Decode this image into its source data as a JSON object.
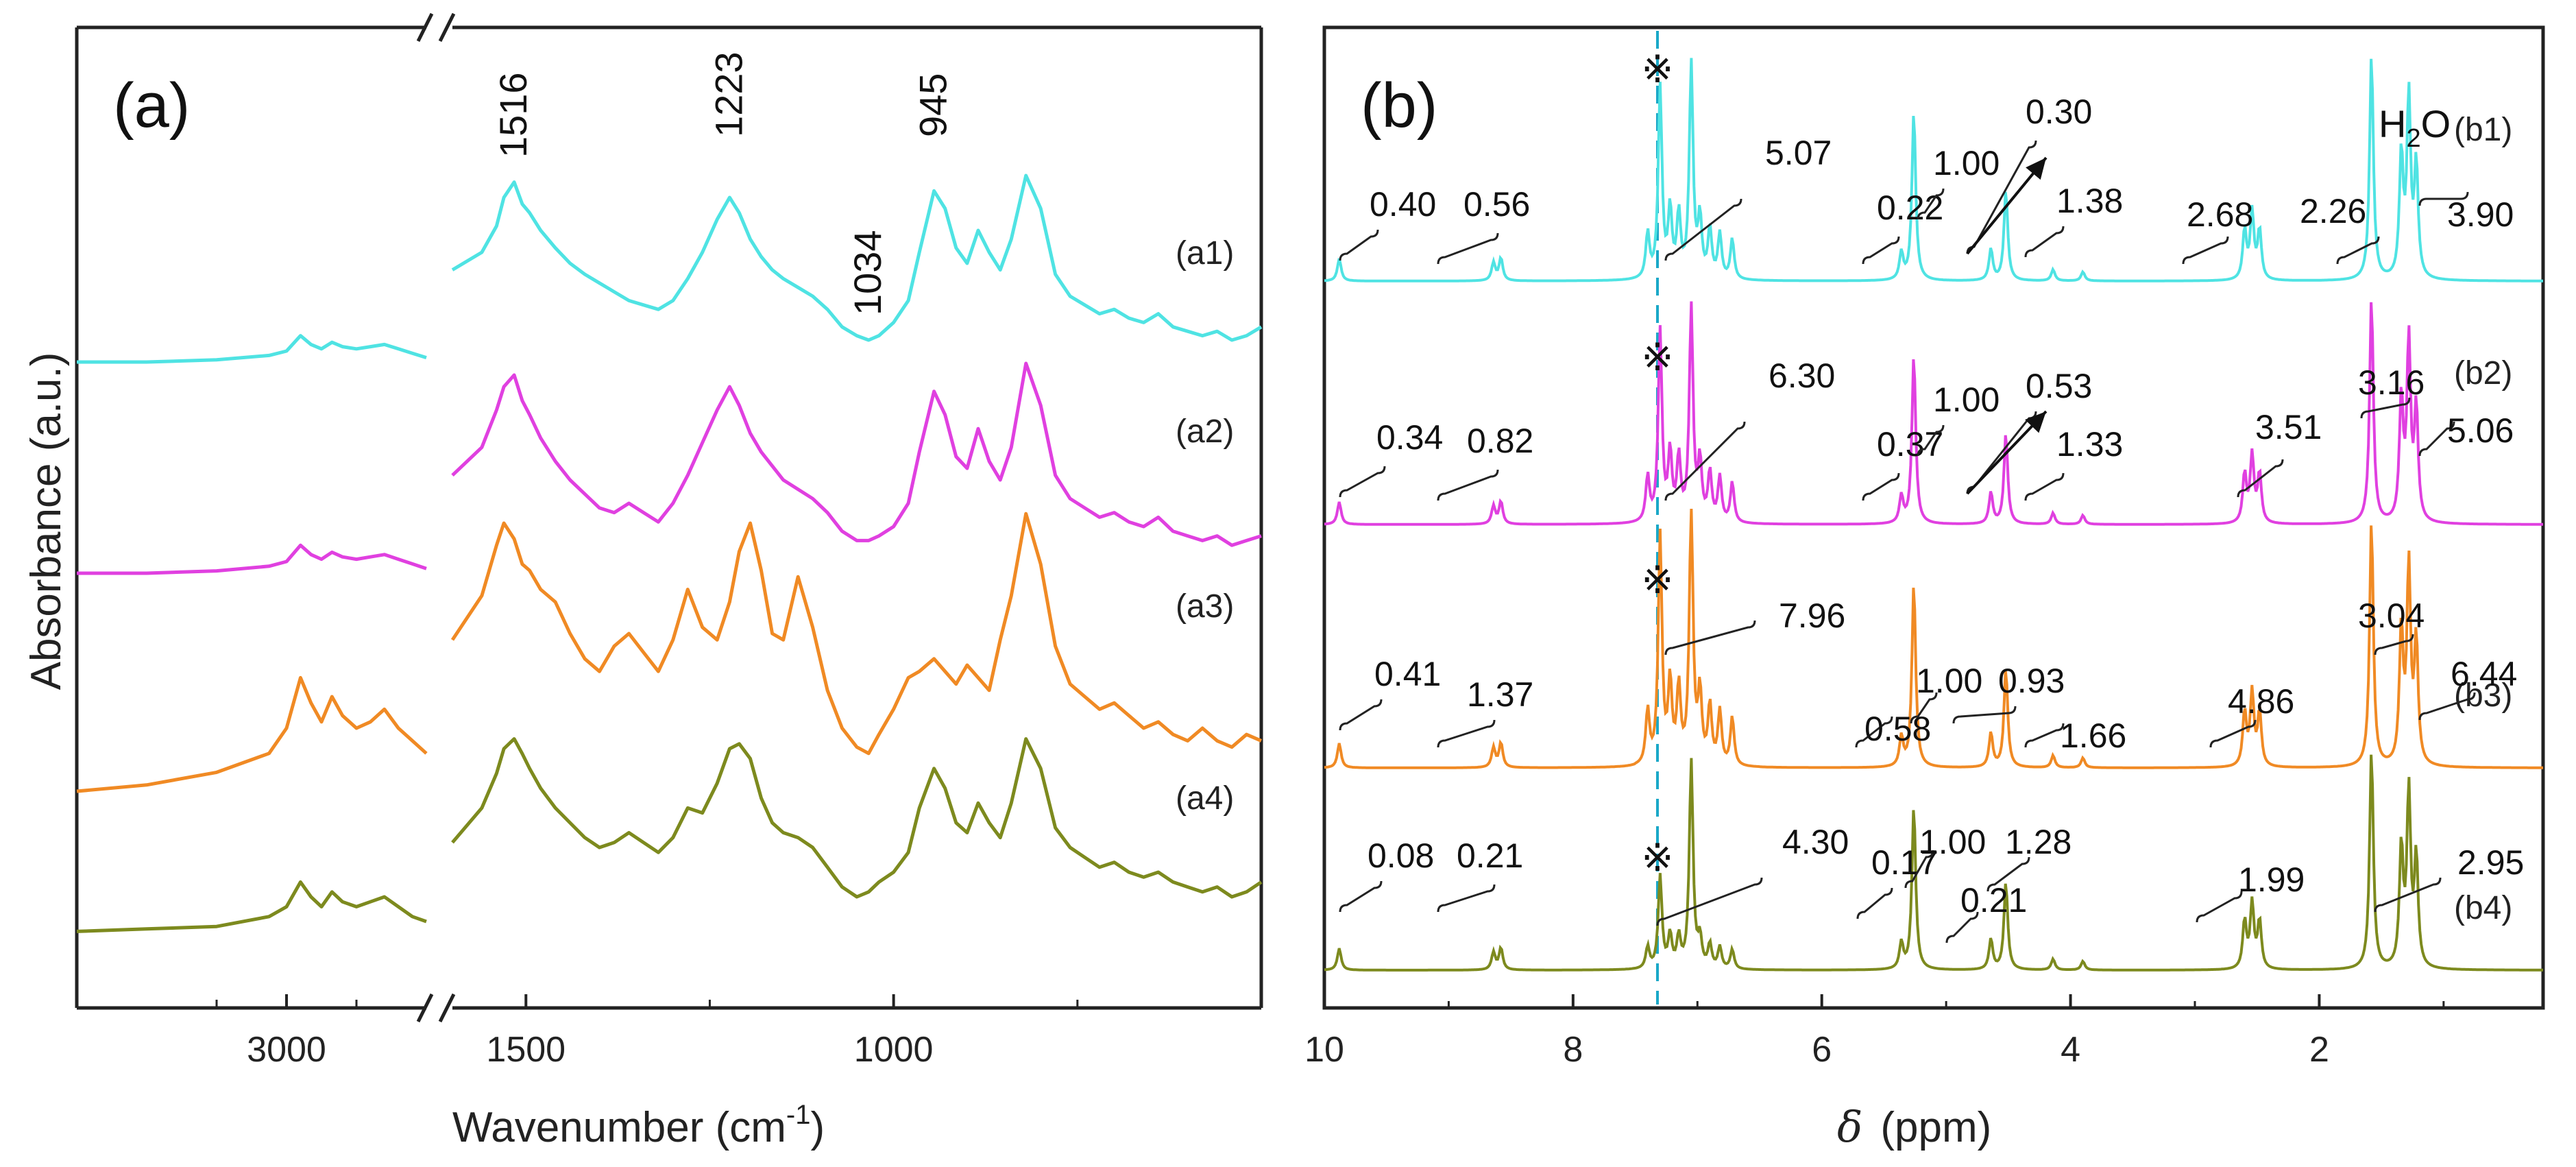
{
  "chart_data": [
    {
      "type": "line",
      "panel": "(a)",
      "title": "",
      "xlabel": "Wavenumber (cm",
      "xlabel_sup": "-1",
      "xlabel_end": ")",
      "ylabel": "Absorbance (a.u.)",
      "x_break": {
        "from": 2600,
        "to": 1600
      },
      "xlim": [
        3600,
        500
      ],
      "xticks": [
        3000,
        1500,
        1000
      ],
      "grid": false,
      "peak_labels": [
        "1516",
        "1223",
        "1034",
        "945"
      ],
      "peak_positions": [
        1516,
        1223,
        1034,
        945
      ],
      "series": [
        {
          "name": "(a1)",
          "color": "#4FE3E3",
          "offset": 0.0,
          "x": [
            3600,
            3400,
            3200,
            3050,
            3000,
            2960,
            2930,
            2900,
            2870,
            2840,
            2800,
            2760,
            2720,
            2680,
            2640,
            2600,
            1600,
            1560,
            1540,
            1530,
            1516,
            1505,
            1495,
            1480,
            1460,
            1440,
            1420,
            1400,
            1380,
            1360,
            1340,
            1320,
            1300,
            1280,
            1260,
            1240,
            1223,
            1210,
            1195,
            1180,
            1165,
            1150,
            1130,
            1110,
            1090,
            1070,
            1050,
            1034,
            1020,
            1000,
            980,
            965,
            945,
            930,
            915,
            900,
            885,
            870,
            855,
            840,
            820,
            800,
            780,
            760,
            740,
            720,
            700,
            680,
            660,
            640,
            620,
            600,
            580,
            560,
            540,
            520,
            500
          ],
          "y": [
            0.1,
            0.1,
            0.11,
            0.13,
            0.15,
            0.22,
            0.18,
            0.16,
            0.19,
            0.17,
            0.16,
            0.17,
            0.18,
            0.16,
            0.14,
            0.12,
            0.52,
            0.6,
            0.72,
            0.85,
            0.92,
            0.82,
            0.78,
            0.7,
            0.62,
            0.55,
            0.5,
            0.46,
            0.42,
            0.38,
            0.36,
            0.34,
            0.38,
            0.48,
            0.6,
            0.75,
            0.85,
            0.78,
            0.66,
            0.58,
            0.52,
            0.48,
            0.44,
            0.4,
            0.34,
            0.26,
            0.22,
            0.2,
            0.22,
            0.28,
            0.38,
            0.6,
            0.88,
            0.8,
            0.62,
            0.55,
            0.7,
            0.6,
            0.52,
            0.66,
            0.95,
            0.8,
            0.5,
            0.4,
            0.36,
            0.32,
            0.34,
            0.3,
            0.28,
            0.32,
            0.26,
            0.24,
            0.22,
            0.24,
            0.2,
            0.22,
            0.26
          ]
        },
        {
          "name": "(a2)",
          "color": "#E040E0",
          "offset": 0.0,
          "x": [
            3600,
            3400,
            3200,
            3050,
            3000,
            2960,
            2930,
            2900,
            2870,
            2840,
            2800,
            2760,
            2720,
            2680,
            2640,
            2600,
            1600,
            1560,
            1540,
            1530,
            1516,
            1505,
            1495,
            1480,
            1460,
            1440,
            1420,
            1400,
            1380,
            1360,
            1340,
            1320,
            1300,
            1280,
            1260,
            1240,
            1223,
            1210,
            1195,
            1180,
            1165,
            1150,
            1130,
            1110,
            1090,
            1070,
            1050,
            1034,
            1020,
            1000,
            980,
            965,
            945,
            930,
            915,
            900,
            885,
            870,
            855,
            840,
            820,
            800,
            780,
            760,
            740,
            720,
            700,
            680,
            660,
            640,
            620,
            600,
            580,
            560,
            540,
            520,
            500
          ],
          "y": [
            0.1,
            0.1,
            0.11,
            0.13,
            0.15,
            0.22,
            0.18,
            0.16,
            0.19,
            0.17,
            0.16,
            0.17,
            0.18,
            0.16,
            0.14,
            0.12,
            0.52,
            0.64,
            0.8,
            0.9,
            0.95,
            0.84,
            0.78,
            0.68,
            0.58,
            0.5,
            0.44,
            0.38,
            0.36,
            0.4,
            0.36,
            0.32,
            0.4,
            0.52,
            0.66,
            0.8,
            0.9,
            0.82,
            0.7,
            0.62,
            0.56,
            0.5,
            0.46,
            0.42,
            0.36,
            0.28,
            0.24,
            0.24,
            0.26,
            0.3,
            0.4,
            0.62,
            0.88,
            0.78,
            0.6,
            0.55,
            0.72,
            0.58,
            0.5,
            0.64,
            1.0,
            0.82,
            0.52,
            0.42,
            0.38,
            0.34,
            0.36,
            0.32,
            0.3,
            0.34,
            0.28,
            0.26,
            0.24,
            0.26,
            0.22,
            0.24,
            0.26
          ]
        },
        {
          "name": "(a3)",
          "color": "#F08A24",
          "offset": 0.0,
          "x": [
            3600,
            3400,
            3200,
            3050,
            3000,
            2960,
            2930,
            2900,
            2870,
            2840,
            2800,
            2760,
            2720,
            2680,
            2640,
            2600,
            1600,
            1560,
            1540,
            1530,
            1516,
            1505,
            1495,
            1480,
            1460,
            1440,
            1420,
            1400,
            1380,
            1360,
            1340,
            1320,
            1300,
            1280,
            1260,
            1240,
            1223,
            1210,
            1195,
            1180,
            1165,
            1150,
            1130,
            1110,
            1090,
            1070,
            1050,
            1034,
            1020,
            1000,
            980,
            965,
            945,
            930,
            915,
            900,
            885,
            870,
            855,
            840,
            820,
            800,
            780,
            760,
            740,
            720,
            700,
            680,
            660,
            640,
            620,
            600,
            580,
            560,
            540,
            520,
            500
          ],
          "y": [
            0.1,
            0.12,
            0.16,
            0.22,
            0.3,
            0.46,
            0.38,
            0.32,
            0.4,
            0.34,
            0.3,
            0.32,
            0.36,
            0.3,
            0.26,
            0.22,
            0.58,
            0.72,
            0.88,
            0.95,
            0.9,
            0.82,
            0.8,
            0.74,
            0.7,
            0.6,
            0.52,
            0.48,
            0.56,
            0.6,
            0.54,
            0.48,
            0.58,
            0.74,
            0.62,
            0.58,
            0.7,
            0.86,
            0.95,
            0.8,
            0.6,
            0.58,
            0.78,
            0.62,
            0.42,
            0.3,
            0.24,
            0.22,
            0.28,
            0.36,
            0.46,
            0.48,
            0.52,
            0.48,
            0.44,
            0.5,
            0.46,
            0.42,
            0.58,
            0.72,
            0.98,
            0.82,
            0.56,
            0.44,
            0.4,
            0.36,
            0.38,
            0.34,
            0.3,
            0.32,
            0.28,
            0.26,
            0.3,
            0.26,
            0.24,
            0.28,
            0.26
          ]
        },
        {
          "name": "(a4)",
          "color": "#7D8A1E",
          "offset": 0.0,
          "x": [
            3600,
            3400,
            3200,
            3050,
            3000,
            2960,
            2930,
            2900,
            2870,
            2840,
            2800,
            2760,
            2720,
            2680,
            2640,
            2600,
            1600,
            1560,
            1540,
            1530,
            1516,
            1505,
            1495,
            1480,
            1460,
            1440,
            1420,
            1400,
            1380,
            1360,
            1340,
            1320,
            1300,
            1280,
            1260,
            1240,
            1223,
            1210,
            1195,
            1180,
            1165,
            1150,
            1130,
            1110,
            1090,
            1070,
            1050,
            1034,
            1020,
            1000,
            980,
            965,
            945,
            930,
            915,
            900,
            885,
            870,
            855,
            840,
            820,
            800,
            780,
            760,
            740,
            720,
            700,
            680,
            660,
            640,
            620,
            600,
            580,
            560,
            540,
            520,
            500
          ],
          "y": [
            0.06,
            0.07,
            0.08,
            0.12,
            0.16,
            0.26,
            0.2,
            0.16,
            0.22,
            0.18,
            0.16,
            0.18,
            0.2,
            0.16,
            0.12,
            0.1,
            0.42,
            0.56,
            0.7,
            0.8,
            0.84,
            0.78,
            0.72,
            0.64,
            0.56,
            0.5,
            0.44,
            0.4,
            0.42,
            0.46,
            0.42,
            0.38,
            0.44,
            0.56,
            0.54,
            0.66,
            0.8,
            0.82,
            0.76,
            0.6,
            0.5,
            0.46,
            0.44,
            0.4,
            0.32,
            0.24,
            0.2,
            0.22,
            0.26,
            0.3,
            0.38,
            0.56,
            0.72,
            0.64,
            0.5,
            0.46,
            0.58,
            0.5,
            0.44,
            0.58,
            0.84,
            0.72,
            0.48,
            0.4,
            0.36,
            0.32,
            0.34,
            0.3,
            0.28,
            0.3,
            0.26,
            0.24,
            0.22,
            0.24,
            0.2,
            0.22,
            0.26
          ]
        }
      ]
    },
    {
      "type": "line",
      "panel": "(b)",
      "title": "",
      "xlabel_symbol": "δ",
      "xlabel": "(ppm)",
      "ylabel": "",
      "xlim": [
        10,
        0.2
      ],
      "xticks": [
        10,
        8,
        6,
        4,
        2
      ],
      "grid": false,
      "solvent_marker": "※",
      "water_label": "H",
      "water_sub": "2",
      "water_end": "O",
      "series": [
        {
          "name": "(b1)",
          "color": "#4FE3E3",
          "scale": 1.0,
          "integrals": [
            "0.40",
            "0.56",
            "5.07",
            "0.22",
            "1.00",
            "0.30",
            "1.38",
            "2.68",
            "2.26",
            "3.90"
          ]
        },
        {
          "name": "(b2)",
          "color": "#E040E0",
          "scale": 1.0,
          "integrals": [
            "0.34",
            "0.82",
            "6.30",
            "0.37",
            "1.00",
            "0.53",
            "1.33",
            "3.51",
            "3.16",
            "5.06"
          ]
        },
        {
          "name": "(b3)",
          "color": "#F08A24",
          "scale": 1.0,
          "integrals": [
            "0.41",
            "1.37",
            "7.96",
            "0.58",
            "1.00",
            "0.93",
            "1.66",
            "4.86",
            "3.04",
            "6.44"
          ]
        },
        {
          "name": "(b4)",
          "color": "#7D8A1E",
          "scale": 1.0,
          "integrals": [
            "0.08",
            "0.21",
            "4.30",
            "0.17",
            "1.00",
            "0.21",
            "1.28",
            "1.99",
            "2.95"
          ]
        }
      ],
      "peaks": [
        {
          "ppm": 9.88,
          "h": 0.1
        },
        {
          "ppm": 8.64,
          "h": 0.08
        },
        {
          "ppm": 8.58,
          "h": 0.1
        },
        {
          "ppm": 7.4,
          "h": 0.2
        },
        {
          "ppm": 7.3,
          "h": 0.85
        },
        {
          "ppm": 7.22,
          "h": 0.3
        },
        {
          "ppm": 7.15,
          "h": 0.28
        },
        {
          "ppm": 7.05,
          "h": 0.95
        },
        {
          "ppm": 6.98,
          "h": 0.26
        },
        {
          "ppm": 6.9,
          "h": 0.22
        },
        {
          "ppm": 6.82,
          "h": 0.2
        },
        {
          "ppm": 6.72,
          "h": 0.18
        },
        {
          "ppm": 5.36,
          "h": 0.12
        },
        {
          "ppm": 5.26,
          "h": 0.75
        },
        {
          "ppm": 4.64,
          "h": 0.14
        },
        {
          "ppm": 4.52,
          "h": 0.4
        },
        {
          "ppm": 4.14,
          "h": 0.05
        },
        {
          "ppm": 3.9,
          "h": 0.04
        },
        {
          "ppm": 2.6,
          "h": 0.22
        },
        {
          "ppm": 2.54,
          "h": 0.3
        },
        {
          "ppm": 2.48,
          "h": 0.22
        },
        {
          "ppm": 1.58,
          "h": 1.0
        },
        {
          "ppm": 1.34,
          "h": 0.55
        },
        {
          "ppm": 1.28,
          "h": 0.8
        },
        {
          "ppm": 1.22,
          "h": 0.5
        }
      ]
    }
  ]
}
